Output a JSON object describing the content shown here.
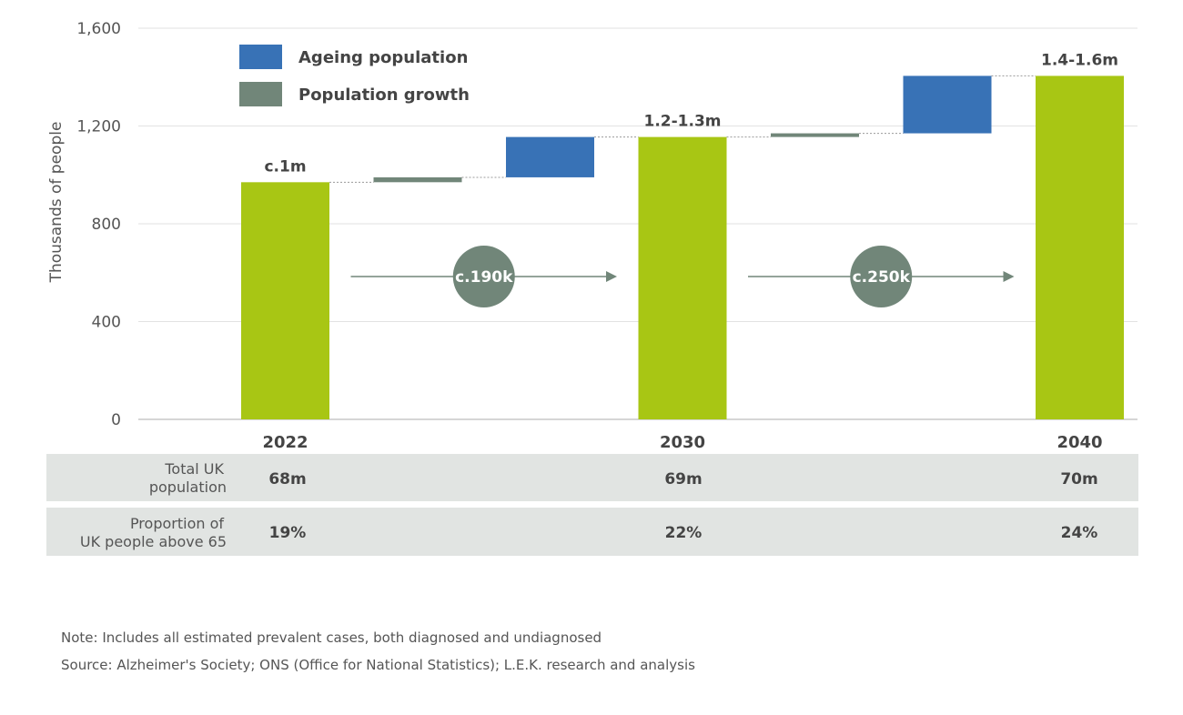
{
  "chart_data": {
    "type": "waterfall",
    "ylabel": "Thousands of people",
    "ylim": [
      0,
      1600
    ],
    "yticks": [
      0,
      400,
      800,
      1200,
      1600
    ],
    "ytick_labels": [
      "0",
      "400",
      "800",
      "1,200",
      "1,600"
    ],
    "grid": true,
    "legend": {
      "placement": "top-left",
      "entries": [
        {
          "name": "Ageing population",
          "color": "#3872b6"
        },
        {
          "name": "Population growth",
          "color": "#718679"
        }
      ]
    },
    "bars": [
      {
        "kind": "total",
        "category": "2022",
        "value": 970,
        "label": "c.1m",
        "color": "#a8c614"
      },
      {
        "kind": "delta",
        "series": "Population growth",
        "value": 20,
        "color": "#718679"
      },
      {
        "kind": "delta",
        "series": "Ageing population",
        "value": 165,
        "color": "#3872b6"
      },
      {
        "kind": "total",
        "category": "2030",
        "value": 1155,
        "label": "1.2-1.3m",
        "color": "#a8c614"
      },
      {
        "kind": "delta",
        "series": "Population growth",
        "value": 15,
        "color": "#718679"
      },
      {
        "kind": "delta",
        "series": "Ageing population",
        "value": 235,
        "color": "#3872b6"
      },
      {
        "kind": "total",
        "category": "2040",
        "value": 1405,
        "label": "1.4-1.6m",
        "color": "#a8c614"
      }
    ],
    "annotations": [
      {
        "from": "2022",
        "to": "2030",
        "label": "c.190k"
      },
      {
        "from": "2030",
        "to": "2040",
        "label": "c.250k"
      }
    ]
  },
  "table": {
    "rows": [
      {
        "label_line1": "Total UK",
        "label_line2": "population",
        "values": [
          "68m",
          "69m",
          "70m"
        ]
      },
      {
        "label_line1": "Proportion of",
        "label_line2": "UK people above 65",
        "values": [
          "19%",
          "22%",
          "24%"
        ]
      }
    ]
  },
  "footer": {
    "note": "Note: Includes all estimated prevalent cases, both diagnosed and undiagnosed",
    "source": "Source: Alzheimer's Society; ONS (Office for National Statistics); L.E.K. research and analysis"
  }
}
